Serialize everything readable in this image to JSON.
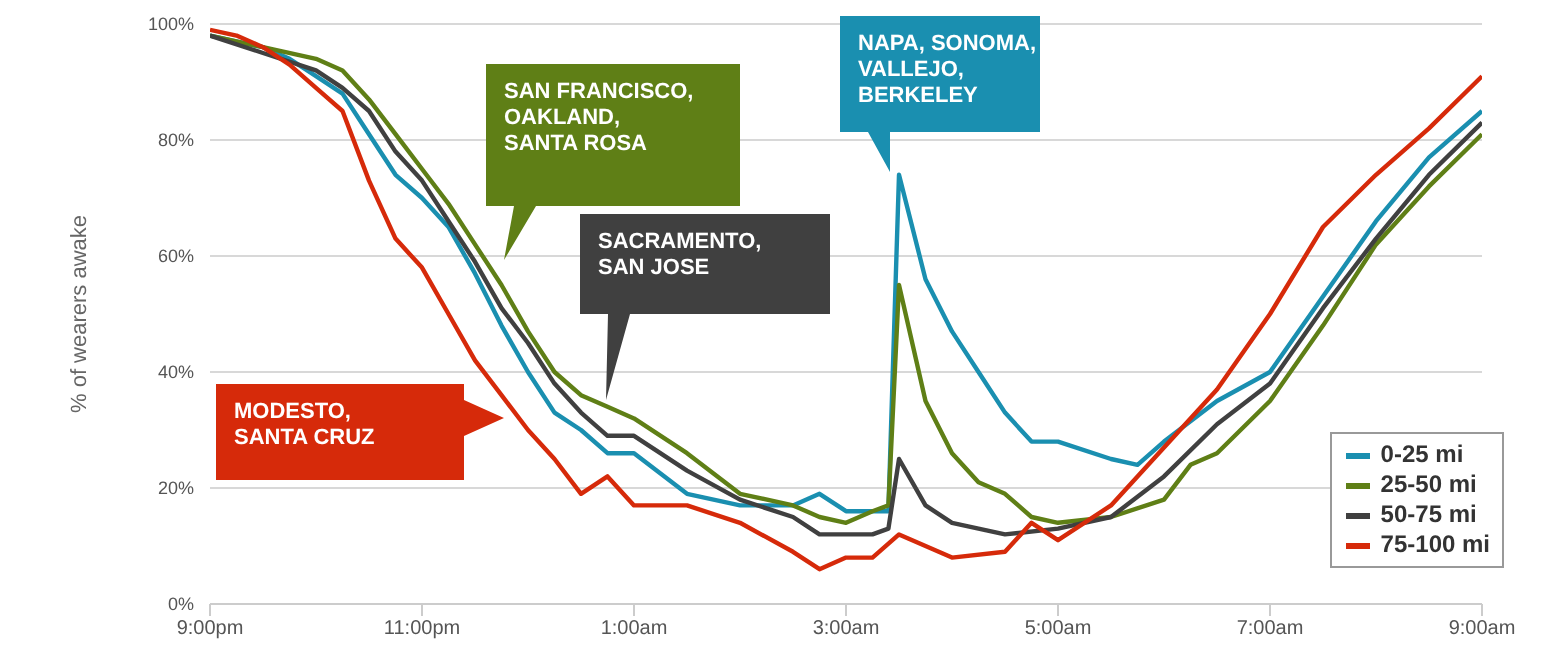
{
  "chart_data": {
    "type": "line",
    "ylabel": "% of wearers awake",
    "xlim": [
      "--08-23T21:00",
      "--08-24T09:00"
    ],
    "xticks": [
      {
        "value": "--08-23T21:00",
        "label": "9:00pm"
      },
      {
        "value": "--08-23T23:00",
        "label": "11:00pm"
      },
      {
        "value": "--08-24T01:00",
        "label": "1:00am"
      },
      {
        "value": "--08-24T03:00",
        "label": "3:00am"
      },
      {
        "value": "--08-24T05:00",
        "label": "5:00am"
      },
      {
        "value": "--08-24T07:00",
        "label": "7:00am"
      },
      {
        "value": "--08-24T09:00",
        "label": "9:00am"
      }
    ],
    "ylim": [
      0,
      100
    ],
    "yticks": [
      {
        "value": 0,
        "label": "0%"
      },
      {
        "value": 20,
        "label": "20%"
      },
      {
        "value": 40,
        "label": "40%"
      },
      {
        "value": 60,
        "label": "60%"
      },
      {
        "value": 80,
        "label": "80%"
      },
      {
        "value": 100,
        "label": "100%"
      }
    ],
    "grid": "y",
    "legend": "bottom right",
    "marker": "none",
    "line_style": "solid",
    "series": [
      {
        "name": "0-25 mi",
        "color": "#1a8fb0",
        "x": [
          "--08-23T21:00",
          "--08-23T21:30",
          "--08-23T21:45",
          "--08-23T22:00",
          "--08-23T22:15",
          "--08-23T22:30",
          "--08-23T22:45",
          "--08-23T23:00",
          "--08-23T23:15",
          "--08-23T23:30",
          "--08-23T23:45",
          "--08-24T00:00",
          "--08-24T00:15",
          "--08-24T00:30",
          "--08-24T00:45",
          "--08-24T01:00",
          "--08-24T01:30",
          "--08-24T02:00",
          "--08-24T02:30",
          "--08-24T02:45",
          "--08-24T03:00",
          "--08-24T03:15",
          "--08-24T03:24",
          "--08-24T03:30",
          "--08-24T03:45",
          "--08-24T04:00",
          "--08-24T04:15",
          "--08-24T04:30",
          "--08-24T04:45",
          "--08-24T05:00",
          "--08-24T05:30",
          "--08-24T05:45",
          "--08-24T06:00",
          "--08-24T06:30",
          "--08-24T07:00",
          "--08-24T07:30",
          "--08-24T08:00",
          "--08-24T08:30",
          "--08-24T09:00"
        ],
        "values": [
          98,
          96,
          94,
          91,
          88,
          81,
          74,
          70,
          65,
          57,
          48,
          40,
          33,
          30,
          26,
          26,
          19,
          17,
          17,
          19,
          16,
          16,
          16,
          74,
          56,
          47,
          40,
          33,
          28,
          28,
          25,
          24,
          28,
          35,
          40,
          53,
          66,
          77,
          85
        ]
      },
      {
        "name": "25-50 mi",
        "color": "#5f7f16",
        "x": [
          "--08-23T21:00",
          "--08-23T21:30",
          "--08-23T22:00",
          "--08-23T22:15",
          "--08-23T22:30",
          "--08-23T22:45",
          "--08-23T23:00",
          "--08-23T23:15",
          "--08-23T23:30",
          "--08-23T23:45",
          "--08-24T00:00",
          "--08-24T00:15",
          "--08-24T00:30",
          "--08-24T00:45",
          "--08-24T01:00",
          "--08-24T01:30",
          "--08-24T02:00",
          "--08-24T02:30",
          "--08-24T02:45",
          "--08-24T03:00",
          "--08-24T03:15",
          "--08-24T03:24",
          "--08-24T03:30",
          "--08-24T03:45",
          "--08-24T04:00",
          "--08-24T04:15",
          "--08-24T04:30",
          "--08-24T04:45",
          "--08-24T05:00",
          "--08-24T05:30",
          "--08-24T06:00",
          "--08-24T06:15",
          "--08-24T06:30",
          "--08-24T07:00",
          "--08-24T07:30",
          "--08-24T08:00",
          "--08-24T08:30",
          "--08-24T09:00"
        ],
        "values": [
          98,
          96,
          94,
          92,
          87,
          81,
          75,
          69,
          62,
          55,
          47,
          40,
          36,
          34,
          32,
          26,
          19,
          17,
          15,
          14,
          16,
          17,
          55,
          35,
          26,
          21,
          19,
          15,
          14,
          15,
          18,
          24,
          26,
          35,
          48,
          62,
          72,
          81
        ]
      },
      {
        "name": "50-75 mi",
        "color": "#404040",
        "x": [
          "--08-23T21:00",
          "--08-23T21:30",
          "--08-23T22:00",
          "--08-23T22:15",
          "--08-23T22:30",
          "--08-23T22:45",
          "--08-23T23:00",
          "--08-23T23:15",
          "--08-23T23:30",
          "--08-23T23:45",
          "--08-24T00:00",
          "--08-24T00:15",
          "--08-24T00:30",
          "--08-24T00:45",
          "--08-24T01:00",
          "--08-24T01:30",
          "--08-24T02:00",
          "--08-24T02:30",
          "--08-24T02:45",
          "--08-24T03:00",
          "--08-24T03:15",
          "--08-24T03:24",
          "--08-24T03:30",
          "--08-24T03:45",
          "--08-24T04:00",
          "--08-24T04:30",
          "--08-24T05:00",
          "--08-24T05:30",
          "--08-24T06:00",
          "--08-24T06:30",
          "--08-24T07:00",
          "--08-24T07:30",
          "--08-24T08:00",
          "--08-24T08:30",
          "--08-24T09:00"
        ],
        "values": [
          98,
          95,
          92,
          89,
          85,
          78,
          73,
          66,
          59,
          51,
          45,
          38,
          33,
          29,
          29,
          23,
          18,
          15,
          12,
          12,
          12,
          13,
          25,
          17,
          14,
          12,
          13,
          15,
          22,
          31,
          38,
          51,
          63,
          74,
          83
        ]
      },
      {
        "name": "75-100 mi",
        "color": "#d62a0a",
        "x": [
          "--08-23T21:00",
          "--08-23T21:15",
          "--08-23T21:30",
          "--08-23T21:45",
          "--08-23T22:00",
          "--08-23T22:15",
          "--08-23T22:30",
          "--08-23T22:45",
          "--08-23T23:00",
          "--08-23T23:15",
          "--08-23T23:30",
          "--08-23T23:45",
          "--08-24T00:00",
          "--08-24T00:15",
          "--08-24T00:30",
          "--08-24T00:45",
          "--08-24T01:00",
          "--08-24T01:30",
          "--08-24T02:00",
          "--08-24T02:30",
          "--08-24T02:45",
          "--08-24T03:00",
          "--08-24T03:15",
          "--08-24T03:30",
          "--08-24T03:45",
          "--08-24T04:00",
          "--08-24T04:30",
          "--08-24T04:45",
          "--08-24T05:00",
          "--08-24T05:30",
          "--08-24T06:00",
          "--08-24T06:30",
          "--08-24T07:00",
          "--08-24T07:30",
          "--08-24T08:00",
          "--08-24T08:30",
          "--08-24T09:00"
        ],
        "values": [
          99,
          98,
          96,
          93,
          89,
          85,
          73,
          63,
          58,
          50,
          42,
          36,
          30,
          25,
          19,
          22,
          17,
          17,
          14,
          9,
          6,
          8,
          8,
          12,
          10,
          8,
          9,
          14,
          11,
          17,
          27,
          37,
          50,
          65,
          74,
          82,
          91
        ]
      }
    ],
    "annotations": [
      "SAN FRANCISCO,\nOAKLAND,\nSANTA ROSA",
      "SACRAMENTO,\nSAN JOSE",
      "MODESTO,\nSANTA CRUZ",
      "NAPA, SONOMA,\nVALLEJO,\nBERKELEY"
    ]
  }
}
